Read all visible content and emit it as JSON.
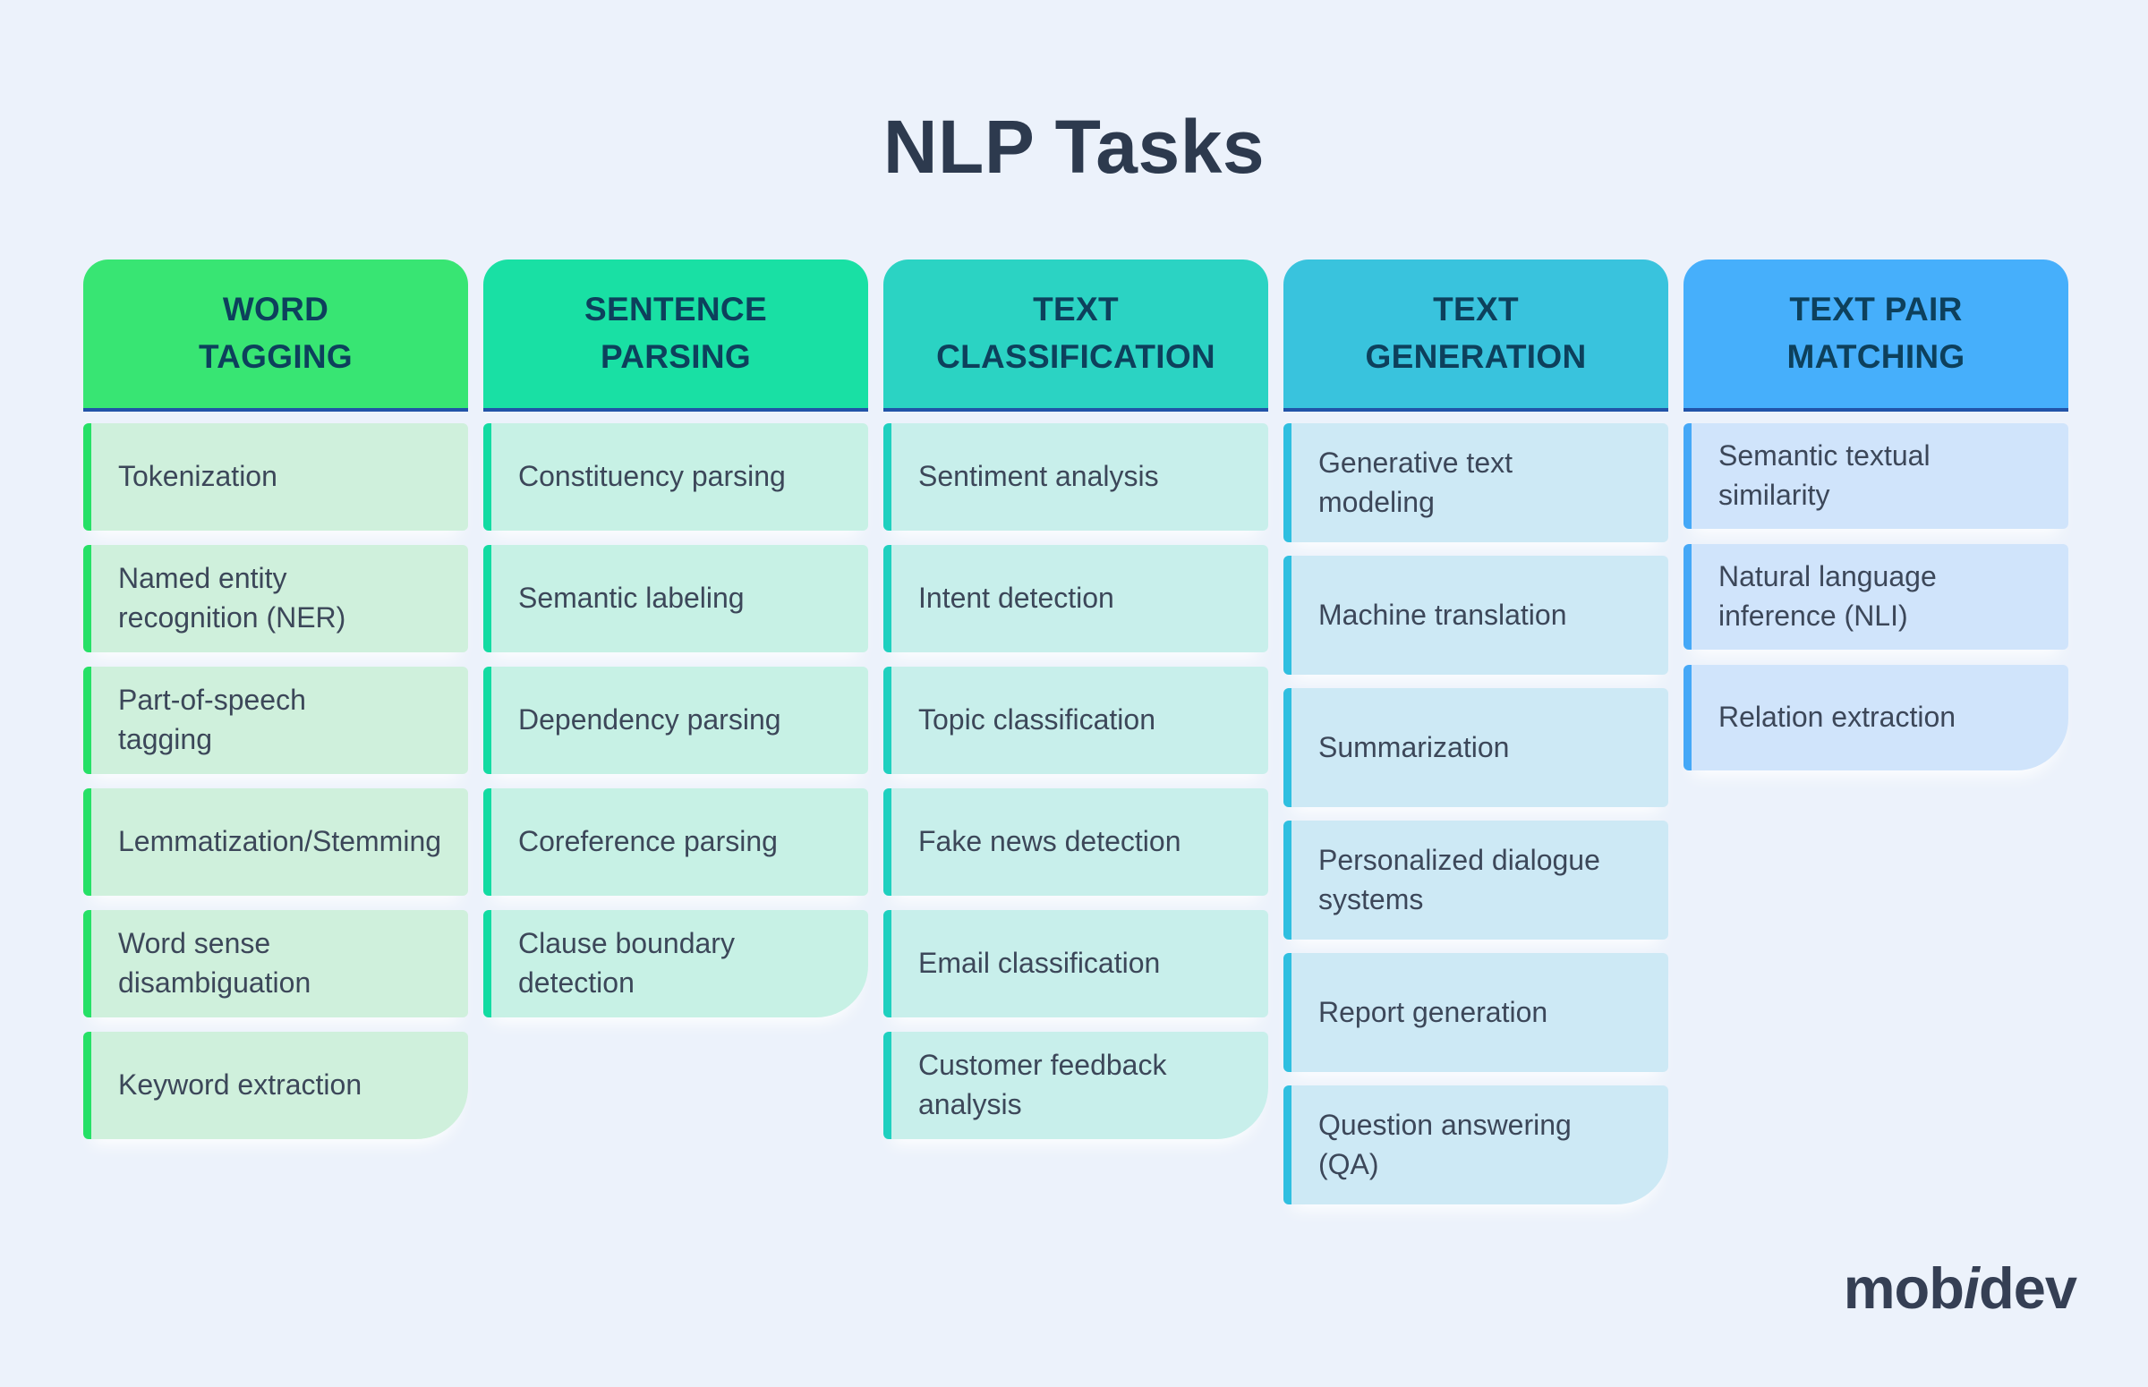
{
  "title": "NLP Tasks",
  "colors": {
    "background": "#ECF2FB",
    "title_text": "#2D3A4E",
    "header_text": "#0D405C",
    "header_underline": "#2153A8",
    "item_text": "#3C4759",
    "logo_text": "#353F54",
    "column_accents": [
      "#26E066",
      "#13DBA2",
      "#1FD0BF",
      "#2FBFE0",
      "#45A8F7"
    ],
    "column_header_backgrounds": [
      "#38E573",
      "#19E0A4",
      "#2BD3C3",
      "#39C3DD",
      "#46AFFB"
    ],
    "column_item_backgrounds": [
      "#CFF0DC",
      "#C7F1E5",
      "#C8EFEB",
      "#CDE9F5",
      "#D0E4FB"
    ]
  },
  "columns": [
    {
      "header": "WORD\nTAGGING",
      "items": [
        "Tokenization",
        "Named entity recognition (NER)",
        "Part-of-speech tagging",
        "Lemmatization/Stemming",
        "Word sense disambiguation",
        "Keyword extraction"
      ]
    },
    {
      "header": "SENTENCE\nPARSING",
      "items": [
        "Constituency parsing",
        "Semantic labeling",
        "Dependency parsing",
        "Coreference parsing",
        "Clause boundary detection"
      ]
    },
    {
      "header": "TEXT\nCLASSIFICATION",
      "items": [
        "Sentiment analysis",
        "Intent detection",
        "Topic classification",
        "Fake news detection",
        "Email classification",
        "Customer feedback analysis"
      ]
    },
    {
      "header": "TEXT\nGENERATION",
      "items": [
        "Generative text modeling",
        "Machine translation",
        "Summarization",
        "Personalized dialogue systems",
        "Report generation",
        "Question answering (QA)"
      ]
    },
    {
      "header": "TEXT PAIR\nMATCHING",
      "items": [
        "Semantic textual similarity",
        "Natural language inference (NLI)",
        "Relation extraction"
      ]
    }
  ],
  "logo": {
    "prefix": "mob",
    "accent_letter": "i",
    "suffix": "dev"
  }
}
